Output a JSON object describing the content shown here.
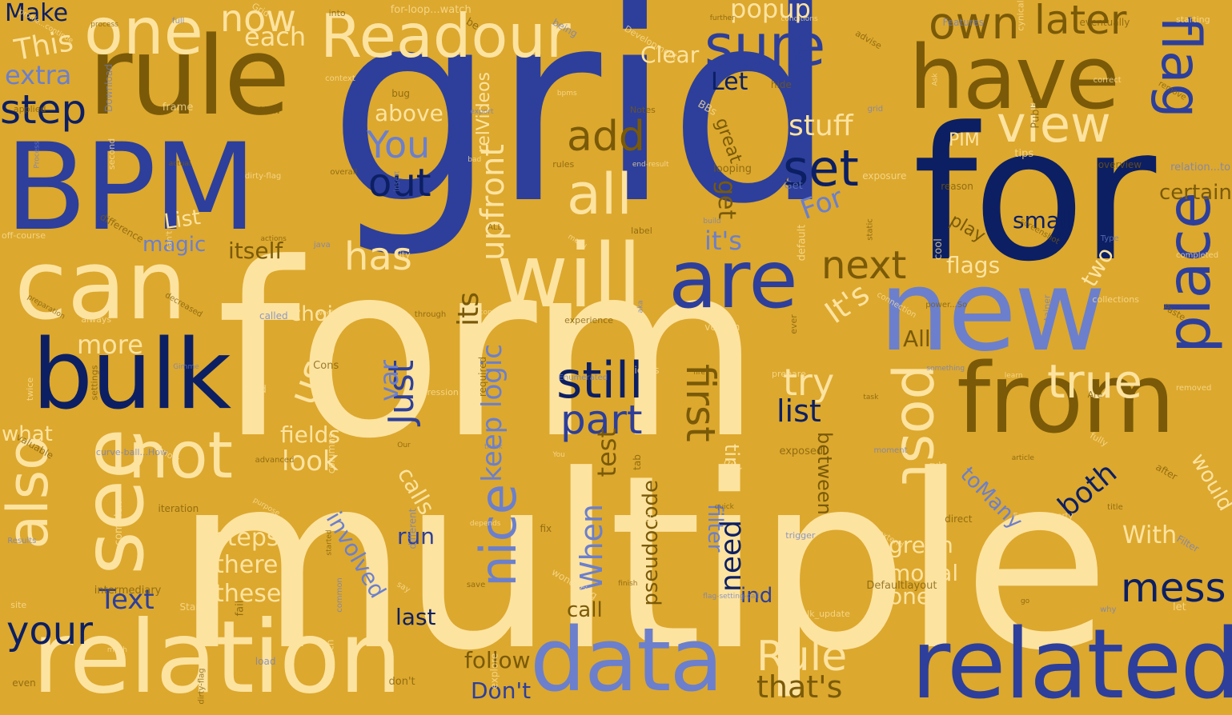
{
  "palette": {
    "background": "#dca82e",
    "cream": "#fde3a0",
    "blue": "#2d3f9b",
    "navy": "#0c1f63",
    "periwinkle": "#6b7fcc",
    "olive": "#7a5a08"
  },
  "words": {
    "grid": "grid",
    "form": "form",
    "multiple": "multiple",
    "for": "for",
    "bpm": "BPM",
    "rule": "rule",
    "can": "can",
    "bulk": "bulk",
    "relation": "relation",
    "related": "related",
    "data": "data",
    "new": "new",
    "from": "from",
    "will": "will",
    "are": "are",
    "have": "have",
    "readour": "Readour",
    "one": "one",
    "see": "see",
    "also": "also",
    "not": "not",
    "all": "all",
    "post": "post",
    "place": "place",
    "flag": "flag",
    "sure": "sure",
    "set": "set",
    "out": "out",
    "view": "view",
    "own": "own",
    "later": "later",
    "still": "still",
    "part": "part",
    "nice": "nice",
    "mess": "mess",
    "your": "your",
    "true": "true",
    "first": "first",
    "next": "next",
    "add": "add",
    "you": "You",
    "has": "has",
    "upfront": "upfront",
    "just": "Just",
    "use": "use",
    "rule2": "Rule",
    "thats": "that's",
    "step": "step",
    "make": "Make",
    "this": "This",
    "extra": "extra",
    "now": "now",
    "each": "each",
    "popup": "popup",
    "clear": "Clear",
    "let": "Let",
    "above": "above",
    "stuff": "stuff",
    "its": "it's",
    "its2": "It's",
    "its3": "its",
    "keep_logic": "keep logic",
    "var": "var",
    "more": "more",
    "list_cap": "List",
    "magic": "magic",
    "itself": "itself",
    "choice": "choice",
    "fields": "fields",
    "look": "look",
    "what": "what",
    "steps": "steps",
    "there": "there",
    "these": "these",
    "text": "Text",
    "run": "run",
    "involved": "involved",
    "last": "last",
    "call": "call",
    "follow": "follow",
    "dont": "Don't",
    "calls": "calls",
    "when": "When",
    "test": "test",
    "pseudocode": "pseudocode",
    "need": "need",
    "filter": "filter",
    "ind": "ind",
    "time": "time",
    "between": "between",
    "list": "list",
    "try": "try",
    "get": "get",
    "for2": "For",
    "green": "green",
    "modal": "modal",
    "ones": "ones",
    "with": "With",
    "both": "both",
    "two": "two",
    "flags": "flags",
    "small": "small",
    "play": "play",
    "certain": "certain",
    "all2": "All",
    "to_many": "toMany",
    "would": "would",
    "pim": "PIM",
    "great": "great",
    "rel_videos": "relVideos",
    "tiny": [
      "profile...continue",
      "process",
      "full",
      "Grid",
      "into",
      "for-loop...watch",
      "be",
      "being",
      "Development",
      "further",
      "conditions",
      "advise",
      "Features",
      "cynical",
      "eventually",
      "starting",
      "applied",
      "Download",
      "frame",
      "How",
      "context",
      "bug",
      "export",
      "bpms",
      "Notes",
      "BBs",
      "hide",
      "grid",
      "Ask",
      "Publish",
      "correct",
      "remove",
      "Process",
      "second",
      "actual",
      "dirty-flag",
      "overall",
      "insert",
      "bad",
      "rules",
      "end-result",
      "looping",
      "Get",
      "exposure",
      "reason",
      "tips",
      "overview",
      "relation...to",
      "off-course",
      "difference",
      "can't",
      "actions",
      "java",
      "city",
      "ALL",
      "menu",
      "label",
      "build",
      "default",
      "static",
      "cool",
      "screenshot",
      "Type",
      "completed",
      "preparation",
      "always",
      "decreased",
      "called",
      "weekend",
      "through",
      "conclusion",
      "experience",
      "aka",
      "version",
      "ever",
      "connection",
      "power...So",
      "container",
      "collections",
      "Paste",
      "twice",
      "settings",
      "Gimme",
      "kind",
      "Cons",
      "expression",
      "required",
      "Enumerated",
      "icons",
      "fire",
      "prepare",
      "task",
      "something",
      "learn",
      "Are",
      "removed",
      "valuable",
      "curve-ball...How",
      "know",
      "advanced",
      "columns",
      "Our",
      "think",
      "You",
      "tab",
      "guy",
      "exposed",
      "moment",
      "rule",
      "article",
      "fully",
      "after",
      "Results",
      "complex",
      "iteration",
      "purpose",
      "started",
      "different",
      "depends",
      "fix",
      "flows",
      "quick",
      "trigger",
      "extend",
      "direct",
      "Enum-property",
      "title",
      "Filter",
      "site",
      "intermediary",
      "Start",
      "fail",
      "common",
      "say",
      "save",
      "wondering",
      "finish",
      "flag-setting-call",
      "bulk_update",
      "Defaultlayout",
      "wrap",
      "go",
      "why",
      "let",
      "even",
      "much",
      "dirty-flag",
      "load",
      "for-each",
      "don't",
      "explore"
    ]
  }
}
